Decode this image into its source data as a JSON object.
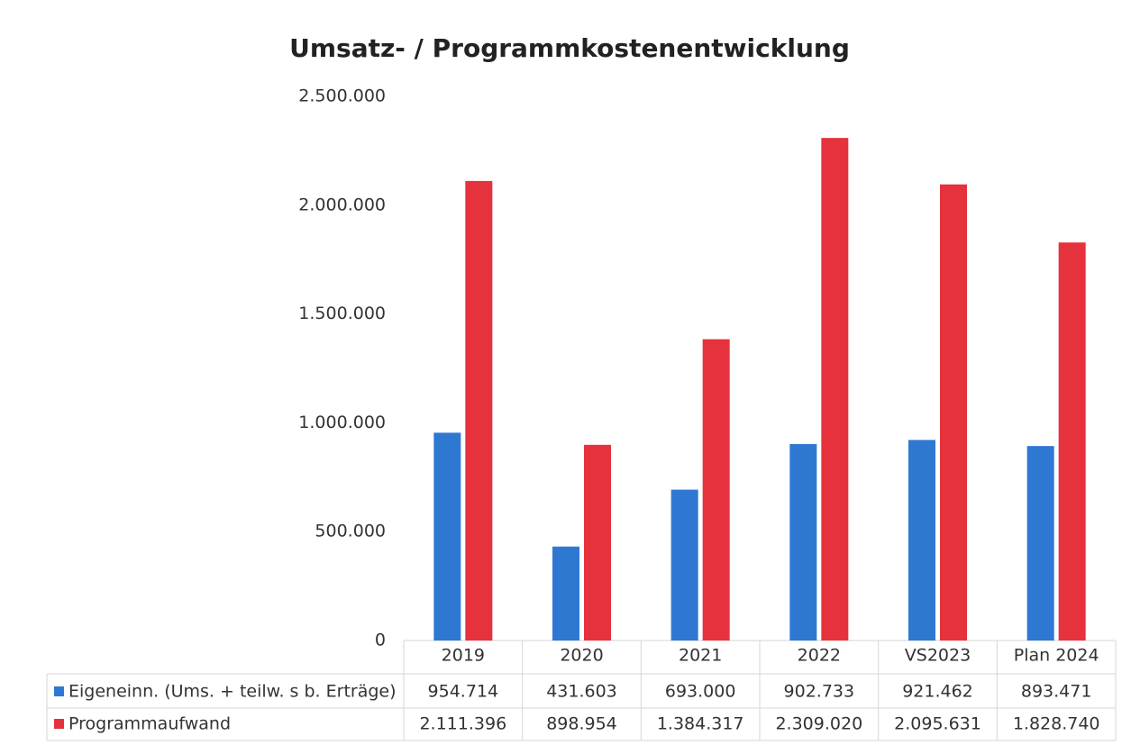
{
  "chart_data": {
    "type": "bar",
    "title": "Umsatz- / Programmkostenentwicklung",
    "categories": [
      "2019",
      "2020",
      "2021",
      "2022",
      "VS2023",
      "Plan 2024"
    ],
    "series": [
      {
        "name": "Eigeneinn. (Ums. + teilw. s b. Erträge)",
        "color": "#2e78d2",
        "values": [
          954714,
          431603,
          693000,
          902733,
          921462,
          893471
        ],
        "value_labels": [
          "954.714",
          "431.603",
          "693.000",
          "902.733",
          "921.462",
          "893.471"
        ]
      },
      {
        "name": "Programmaufwand",
        "color": "#e5323c",
        "values": [
          2111396,
          898954,
          1384317,
          2309020,
          2095631,
          1828740
        ],
        "value_labels": [
          "2.111.396",
          "898.954",
          "1.384.317",
          "2.309.020",
          "2.095.631",
          "1.828.740"
        ]
      }
    ],
    "ylim": [
      0,
      2500000
    ],
    "yticks": [
      0,
      {
        "value": 500000,
        "label": "500.000"
      },
      {
        "value": 1000000,
        "label": "1.000.000"
      },
      {
        "value": 1500000,
        "label": "1.500.000"
      },
      {
        "value": 2000000,
        "label": "2.000.000"
      },
      {
        "value": 2500000,
        "label": "2.500.000"
      }
    ],
    "grid": false,
    "data_table": true
  }
}
